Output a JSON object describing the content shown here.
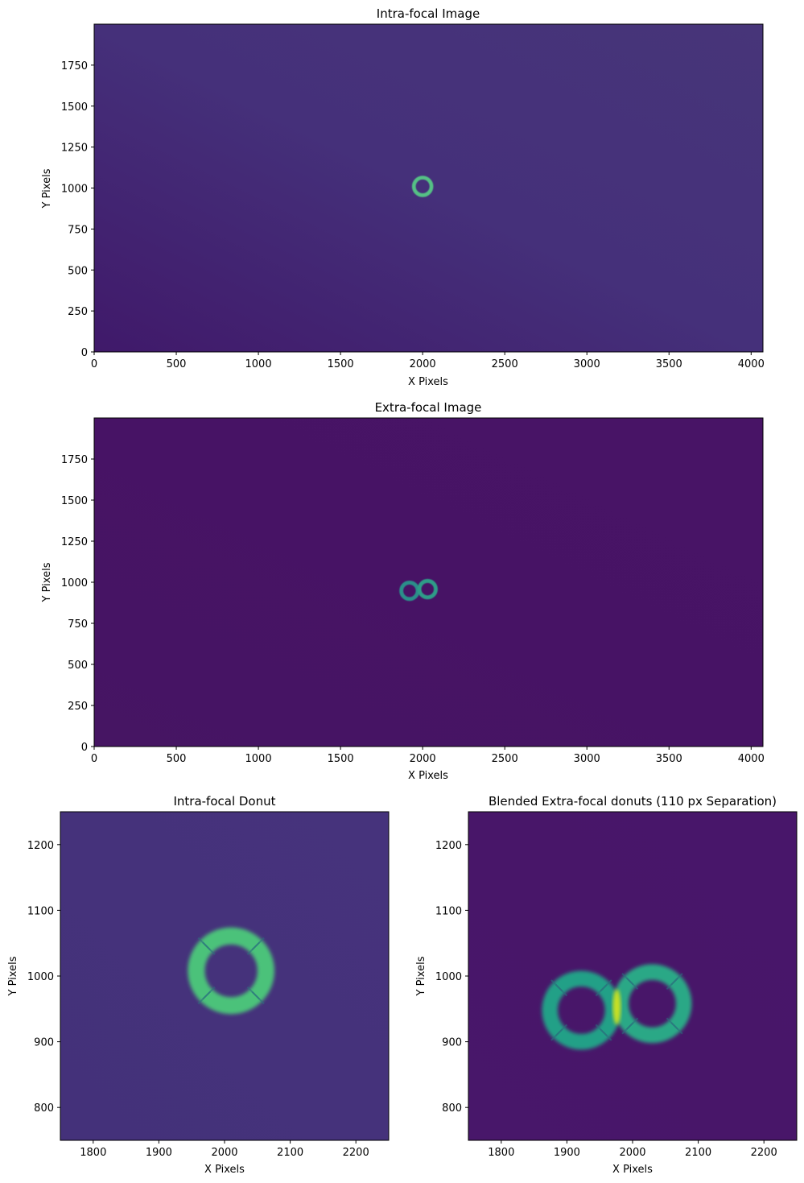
{
  "colormap": [
    "#440154",
    "#482878",
    "#3e4989",
    "#31688e",
    "#26828e",
    "#1f9e89",
    "#35b779",
    "#6ece58",
    "#b5de2b",
    "#fde725"
  ],
  "chart_data": [
    {
      "id": "intra-image",
      "type": "heatmap",
      "title": "Intra-focal Image",
      "xlabel": "X Pixels",
      "ylabel": "Y Pixels",
      "xlim": [
        0,
        4072
      ],
      "ylim": [
        0,
        2000
      ],
      "xticks": [
        0,
        500,
        1000,
        1500,
        2000,
        2500,
        3000,
        3500,
        4000
      ],
      "yticks": [
        0,
        250,
        500,
        750,
        1000,
        1250,
        1500,
        1750
      ],
      "background": {
        "bottom_left": "#40196a",
        "top_right": "#473579",
        "center": "#45307a"
      },
      "donuts": [
        {
          "x": 2000,
          "y": 1010,
          "outer_radius": 65,
          "inner_radius": 42,
          "color": "#55c085"
        }
      ]
    },
    {
      "id": "extra-image",
      "type": "heatmap",
      "title": "Extra-focal Image",
      "xlabel": "X Pixels",
      "ylabel": "Y Pixels",
      "xlim": [
        0,
        4072
      ],
      "ylim": [
        0,
        2000
      ],
      "xticks": [
        0,
        500,
        1000,
        1500,
        2000,
        2500,
        3000,
        3500,
        4000
      ],
      "yticks": [
        0,
        250,
        500,
        750,
        1000,
        1250,
        1500,
        1750
      ],
      "background": {
        "bottom_left": "#461563",
        "top_right": "#481466",
        "center": "#471365"
      },
      "donuts": [
        {
          "x": 1920,
          "y": 948,
          "outer_radius": 62,
          "inner_radius": 38,
          "color": "#2b8f8a"
        },
        {
          "x": 2030,
          "y": 958,
          "outer_radius": 62,
          "inner_radius": 38,
          "color": "#2e9c88"
        }
      ]
    },
    {
      "id": "intra-donut",
      "type": "heatmap",
      "title": "Intra-focal Donut",
      "xlabel": "X Pixels",
      "ylabel": "Y Pixels",
      "xlim": [
        1750,
        2250
      ],
      "ylim": [
        750,
        1250
      ],
      "xticks": [
        1800,
        1900,
        2000,
        2100,
        2200
      ],
      "yticks": [
        800,
        900,
        1000,
        1100,
        1200
      ],
      "background": {
        "bottom_left": "#44317a",
        "top_right": "#46337c",
        "center": "#45327b"
      },
      "donuts": [
        {
          "x": 2010,
          "y": 1008,
          "outer_radius": 66,
          "inner_radius": 40,
          "color": "#4cc27a"
        }
      ]
    },
    {
      "id": "extra-donuts",
      "type": "heatmap",
      "title": "Blended Extra-focal donuts (110 px Separation)",
      "xlabel": "X Pixels",
      "ylabel": "Y Pixels",
      "xlim": [
        1750,
        2250
      ],
      "ylim": [
        750,
        1250
      ],
      "xticks": [
        1800,
        1900,
        2000,
        2100,
        2200
      ],
      "yticks": [
        800,
        900,
        1000,
        1100,
        1200
      ],
      "background": {
        "bottom_left": "#48176a",
        "top_right": "#48166a",
        "center": "#481669"
      },
      "donuts": [
        {
          "x": 1922,
          "y": 948,
          "outer_radius": 60,
          "inner_radius": 36,
          "color": "#24a087"
        },
        {
          "x": 2030,
          "y": 958,
          "outer_radius": 60,
          "inner_radius": 36,
          "color": "#2aa886"
        }
      ],
      "overlap_color": "#c8e020"
    }
  ]
}
